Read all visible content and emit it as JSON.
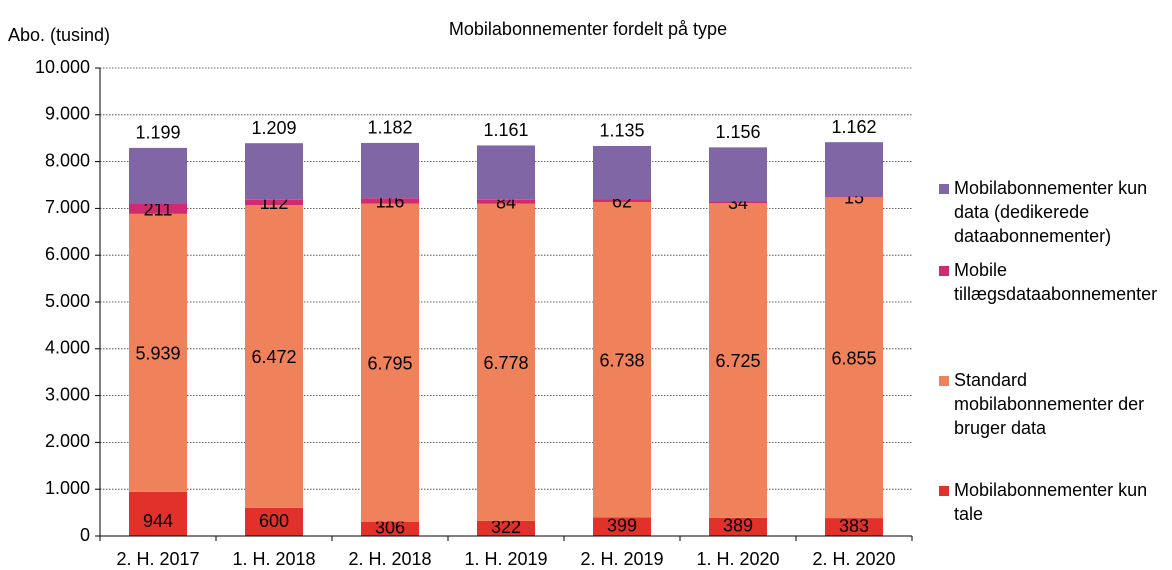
{
  "chart_data": {
    "type": "stacked_bar",
    "title": "Mobilabonnementer fordelt på type",
    "y_label": "Abo. (tusind)",
    "categories": [
      "2. H. 2017",
      "1. H. 2018",
      "2. H. 2018",
      "1. H. 2019",
      "2. H. 2019",
      "1. H. 2020",
      "2. H. 2020"
    ],
    "series": [
      {
        "name": "Mobilabonnementer kun tale",
        "color": "#e2302a",
        "values": [
          944,
          600,
          306,
          322,
          399,
          389,
          383
        ],
        "value_labels": [
          "944",
          "600",
          "306",
          "322",
          "399",
          "389",
          "383"
        ]
      },
      {
        "name": "Standard mobilabonnementer der bruger data",
        "color": "#ef825a",
        "values": [
          5939,
          6472,
          6795,
          6778,
          6738,
          6725,
          6855
        ],
        "value_labels": [
          "5.939",
          "6.472",
          "6.795",
          "6.778",
          "6.738",
          "6.725",
          "6.855"
        ]
      },
      {
        "name": "Mobile tillægsdataabonnementer",
        "color": "#d02b72",
        "values": [
          211,
          112,
          116,
          84,
          62,
          34,
          15
        ],
        "value_labels": [
          "211",
          "112",
          "116",
          "84",
          "62",
          "34",
          "15"
        ]
      },
      {
        "name": "Mobilabonnementer kun data (dedikerede dataabonnementer)",
        "color": "#8066a4",
        "values": [
          1199,
          1209,
          1182,
          1161,
          1135,
          1156,
          1162
        ],
        "value_labels": [
          "1.199",
          "1.209",
          "1.182",
          "1.161",
          "1.135",
          "1.156",
          "1.162"
        ]
      }
    ],
    "ylim": [
      0,
      10000
    ],
    "yticks": [
      0,
      {
        "value": 1000,
        "label": "1.000"
      },
      {
        "value": 2000,
        "label": "2.000"
      },
      {
        "value": 3000,
        "label": "3.000"
      },
      {
        "value": 4000,
        "label": "4.000"
      },
      {
        "value": 5000,
        "label": "5.000"
      },
      {
        "value": 6000,
        "label": "6.000"
      },
      {
        "value": 7000,
        "label": "7.000"
      },
      {
        "value": 8000,
        "label": "8.000"
      },
      {
        "value": 9000,
        "label": "9.000"
      },
      {
        "value": 10000,
        "label": "10.000"
      }
    ],
    "grid": true,
    "legend": "right"
  }
}
